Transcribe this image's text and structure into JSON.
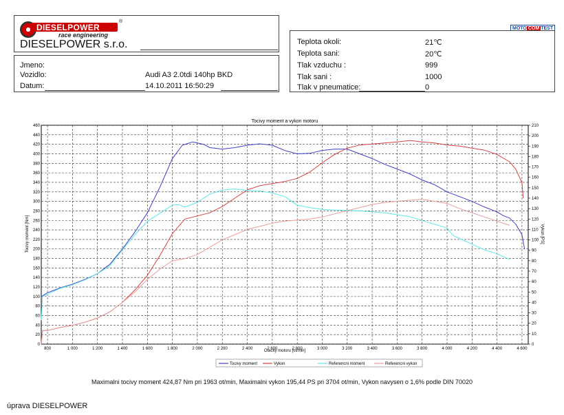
{
  "header": {
    "logo_text": "DIESELPOWER",
    "logo_tagline": "race engineering",
    "logo_mark": "®",
    "company": "DIESELPOWER s.r.o.",
    "fields": [
      {
        "label": "Jmeno:",
        "value": ""
      },
      {
        "label": "Vozidlo:",
        "value": "Audi A3 2.0tdi 140hp BKD"
      },
      {
        "label": "Datum:",
        "value": "14.10.2011 16:50:29"
      }
    ],
    "test_badge": {
      "left": "MOTO",
      "mid": "COM",
      "right": "TEST"
    }
  },
  "conditions": [
    {
      "label": "Teplota okoli:",
      "value": "21℃"
    },
    {
      "label": "Teplota sani:",
      "value": "20℃"
    },
    {
      "label": "Tlak vzduchu :",
      "value": "999"
    },
    {
      "label": "Tlak sani :",
      "value": "1000"
    },
    {
      "label": "Tlak v pneumatice:",
      "value": "0"
    }
  ],
  "chart_data": {
    "type": "line",
    "title": "Tocivy moment a vykon motoru",
    "xlabel": "Otacky motoru [ot/min]",
    "ylabel_left": "Tocivy moment [Nm]",
    "ylabel_right": "Vykon [PS]",
    "xlim": [
      750,
      4650
    ],
    "ylim_left": [
      0,
      460
    ],
    "ylim_right": [
      0,
      210
    ],
    "x_ticks": [
      "800",
      "1 000",
      "1 200",
      "1 400",
      "1 600",
      "1 800",
      "2 000",
      "2 200",
      "2 400",
      "2 600",
      "2 800",
      "3 000",
      "3 200",
      "3 400",
      "3 600",
      "3 800",
      "4 000",
      "4 200",
      "4 400",
      "4 600"
    ],
    "y_ticks_left": [
      "0",
      "20",
      "40",
      "60",
      "80",
      "100",
      "120",
      "140",
      "160",
      "180",
      "200",
      "220",
      "240",
      "260",
      "280",
      "300",
      "320",
      "340",
      "360",
      "380",
      "400",
      "420",
      "440",
      "460"
    ],
    "y_ticks_right": [
      "0",
      "10",
      "20",
      "30",
      "40",
      "50",
      "60",
      "70",
      "80",
      "90",
      "100",
      "110",
      "120",
      "130",
      "140",
      "150",
      "160",
      "170",
      "180",
      "190",
      "200",
      "210"
    ],
    "grid": true,
    "legend_position": "bottom",
    "series": [
      {
        "name": "Tocivy moment",
        "axis": "left",
        "color": "#3f3fc8",
        "points": [
          [
            750,
            100
          ],
          [
            800,
            108
          ],
          [
            900,
            118
          ],
          [
            1000,
            126
          ],
          [
            1100,
            136
          ],
          [
            1200,
            148
          ],
          [
            1300,
            168
          ],
          [
            1400,
            200
          ],
          [
            1500,
            236
          ],
          [
            1600,
            276
          ],
          [
            1700,
            330
          ],
          [
            1800,
            390
          ],
          [
            1880,
            418
          ],
          [
            1963,
            425
          ],
          [
            2050,
            420
          ],
          [
            2100,
            413
          ],
          [
            2200,
            410
          ],
          [
            2300,
            413
          ],
          [
            2400,
            418
          ],
          [
            2500,
            421
          ],
          [
            2600,
            418
          ],
          [
            2700,
            407
          ],
          [
            2800,
            400
          ],
          [
            2900,
            401
          ],
          [
            3000,
            407
          ],
          [
            3100,
            410
          ],
          [
            3200,
            410
          ],
          [
            3300,
            400
          ],
          [
            3400,
            390
          ],
          [
            3500,
            378
          ],
          [
            3600,
            368
          ],
          [
            3700,
            358
          ],
          [
            3800,
            345
          ],
          [
            3900,
            335
          ],
          [
            4000,
            320
          ],
          [
            4100,
            310
          ],
          [
            4200,
            300
          ],
          [
            4300,
            288
          ],
          [
            4400,
            278
          ],
          [
            4450,
            270
          ],
          [
            4500,
            265
          ],
          [
            4550,
            252
          ],
          [
            4600,
            230
          ],
          [
            4620,
            200
          ]
        ]
      },
      {
        "name": "Vykon",
        "axis": "right",
        "color": "#d94040",
        "points": [
          [
            750,
            0
          ],
          [
            760,
            13
          ],
          [
            800,
            13
          ],
          [
            900,
            16
          ],
          [
            1000,
            18
          ],
          [
            1100,
            21
          ],
          [
            1200,
            25
          ],
          [
            1300,
            31
          ],
          [
            1400,
            40
          ],
          [
            1500,
            52
          ],
          [
            1600,
            66
          ],
          [
            1700,
            85
          ],
          [
            1800,
            106
          ],
          [
            1900,
            120
          ],
          [
            2000,
            123
          ],
          [
            2100,
            126
          ],
          [
            2200,
            132
          ],
          [
            2300,
            140
          ],
          [
            2400,
            148
          ],
          [
            2500,
            152
          ],
          [
            2600,
            154
          ],
          [
            2700,
            156
          ],
          [
            2800,
            159
          ],
          [
            2900,
            165
          ],
          [
            3000,
            174
          ],
          [
            3100,
            182
          ],
          [
            3200,
            188
          ],
          [
            3300,
            191
          ],
          [
            3400,
            192
          ],
          [
            3500,
            193
          ],
          [
            3600,
            194
          ],
          [
            3704,
            195.4
          ],
          [
            3800,
            194
          ],
          [
            3900,
            193
          ],
          [
            4000,
            191
          ],
          [
            4100,
            190
          ],
          [
            4200,
            188
          ],
          [
            4300,
            186
          ],
          [
            4400,
            182
          ],
          [
            4500,
            175
          ],
          [
            4550,
            168
          ],
          [
            4600,
            155
          ],
          [
            4610,
            140
          ]
        ]
      },
      {
        "name": "Referencni moment",
        "axis": "left",
        "color": "#5ee6e6",
        "points": [
          [
            750,
            50
          ],
          [
            760,
            100
          ],
          [
            800,
            105
          ],
          [
            900,
            117
          ],
          [
            1000,
            125
          ],
          [
            1100,
            135
          ],
          [
            1200,
            148
          ],
          [
            1300,
            165
          ],
          [
            1400,
            198
          ],
          [
            1500,
            230
          ],
          [
            1600,
            258
          ],
          [
            1700,
            275
          ],
          [
            1800,
            292
          ],
          [
            1850,
            293
          ],
          [
            1900,
            288
          ],
          [
            2000,
            298
          ],
          [
            2100,
            315
          ],
          [
            2200,
            324
          ],
          [
            2300,
            326
          ],
          [
            2400,
            323
          ],
          [
            2500,
            322
          ],
          [
            2600,
            318
          ],
          [
            2700,
            310
          ],
          [
            2800,
            292
          ],
          [
            2900,
            287
          ],
          [
            3000,
            283
          ],
          [
            3100,
            282
          ],
          [
            3200,
            281
          ],
          [
            3300,
            280
          ],
          [
            3400,
            278
          ],
          [
            3500,
            276
          ],
          [
            3600,
            272
          ],
          [
            3700,
            268
          ],
          [
            3800,
            260
          ],
          [
            3900,
            252
          ],
          [
            4000,
            244
          ],
          [
            4050,
            228
          ],
          [
            4100,
            222
          ],
          [
            4200,
            210
          ],
          [
            4300,
            198
          ],
          [
            4400,
            190
          ],
          [
            4500,
            178
          ]
        ]
      },
      {
        "name": "Referencni vykon",
        "axis": "right",
        "color": "#ec9a9a",
        "points": [
          [
            750,
            0
          ],
          [
            760,
            13
          ],
          [
            800,
            13
          ],
          [
            900,
            16
          ],
          [
            1000,
            18
          ],
          [
            1100,
            21
          ],
          [
            1200,
            25
          ],
          [
            1300,
            31
          ],
          [
            1400,
            40
          ],
          [
            1500,
            50
          ],
          [
            1600,
            62
          ],
          [
            1700,
            72
          ],
          [
            1800,
            80
          ],
          [
            1900,
            82
          ],
          [
            2000,
            86
          ],
          [
            2100,
            93
          ],
          [
            2200,
            100
          ],
          [
            2300,
            105
          ],
          [
            2400,
            110
          ],
          [
            2500,
            113
          ],
          [
            2600,
            116
          ],
          [
            2700,
            118
          ],
          [
            2800,
            119
          ],
          [
            2900,
            120
          ],
          [
            3000,
            122
          ],
          [
            3100,
            125
          ],
          [
            3200,
            128
          ],
          [
            3300,
            131
          ],
          [
            3400,
            134
          ],
          [
            3500,
            136
          ],
          [
            3600,
            137
          ],
          [
            3700,
            138
          ],
          [
            3800,
            139
          ],
          [
            3900,
            137
          ],
          [
            4000,
            135
          ],
          [
            4100,
            130
          ],
          [
            4200,
            126
          ],
          [
            4300,
            122
          ],
          [
            4400,
            118
          ],
          [
            4500,
            114
          ]
        ]
      }
    ]
  },
  "summary": "Maximalni tocivy moment 424,87 Nm pri 1963 ot/min,  Maximalni vykon 195,44 PS pri 3704 ot/min,  Vykon navysen o 1,6% podle DIN 70020",
  "footer": "úprava DIESELPOWER"
}
